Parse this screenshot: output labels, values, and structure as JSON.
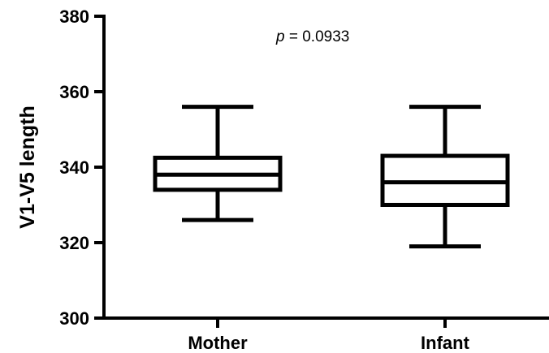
{
  "chart_data": {
    "type": "box",
    "ylabel": "V1-V5 length",
    "xlabel": "",
    "title": "",
    "ylim": [
      300,
      380
    ],
    "yticks": [
      300,
      320,
      340,
      360,
      380
    ],
    "categories": [
      "Mother",
      "Infant"
    ],
    "boxes": [
      {
        "category": "Mother",
        "min": 326,
        "q1": 334,
        "median": 338,
        "q3": 342.5,
        "max": 356
      },
      {
        "category": "Infant",
        "min": 319,
        "q1": 330,
        "median": 336,
        "q3": 343,
        "max": 356
      }
    ],
    "annotation": {
      "prefix": "p",
      "text": " = 0.0933"
    },
    "grid": false,
    "legend": "none"
  }
}
